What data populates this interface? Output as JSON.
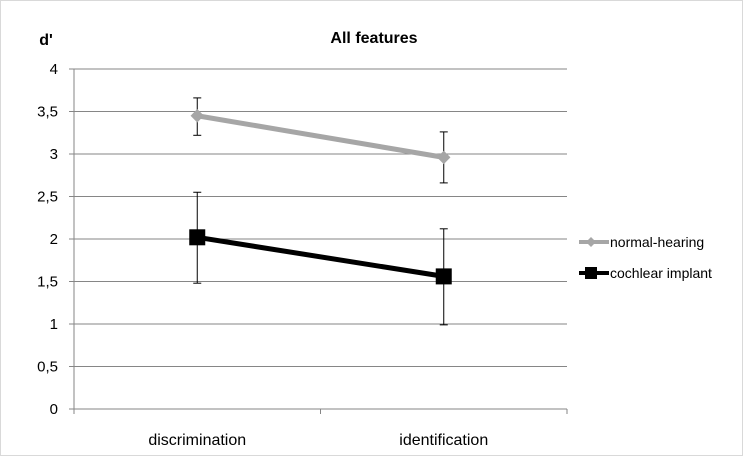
{
  "chart_data": {
    "type": "line",
    "title": "All features",
    "ylabel": "d'",
    "xlabel": "",
    "categories": [
      "discrimination",
      "identification"
    ],
    "ylim": [
      0,
      4
    ],
    "yticks": [
      "0",
      "0,5",
      "1",
      "1,5",
      "2",
      "2,5",
      "3",
      "3,5",
      "4"
    ],
    "ytick_values": [
      0,
      0.5,
      1,
      1.5,
      2,
      2.5,
      3,
      3.5,
      4
    ],
    "grid": true,
    "legend_position": "right",
    "series": [
      {
        "name": "normal-hearing",
        "color": "#a6a6a6",
        "marker": "diamond",
        "values": [
          3.45,
          2.96
        ],
        "err_upper": [
          3.66,
          3.26
        ],
        "err_lower": [
          3.22,
          2.66
        ]
      },
      {
        "name": "cochlear implant",
        "color": "#000000",
        "marker": "square",
        "values": [
          2.02,
          1.56
        ],
        "err_upper": [
          2.55,
          2.12
        ],
        "err_lower": [
          1.48,
          0.99
        ]
      }
    ]
  }
}
